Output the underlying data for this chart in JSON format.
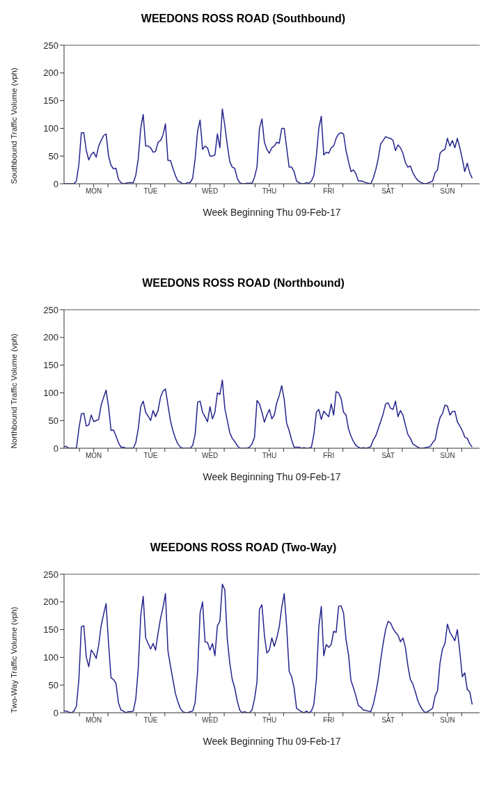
{
  "chart_data": [
    {
      "type": "line",
      "title": "WEEDONS ROSS ROAD  (Southbound)",
      "xlabel": "Week Beginning Thu 09-Feb-17",
      "ylabel": "Southbound Traffic Volume (vph)",
      "marker": "none",
      "categories": [
        null,
        null,
        null,
        null,
        null,
        null,
        null,
        null,
        null,
        null,
        null,
        null,
        "MON",
        null,
        null,
        null,
        null,
        null,
        null,
        null,
        null,
        null,
        null,
        null,
        null,
        null,
        null,
        null,
        null,
        null,
        null,
        null,
        null,
        null,
        null,
        "TUE",
        null,
        null,
        null,
        null,
        null,
        null,
        null,
        null,
        null,
        null,
        null,
        null,
        null,
        null,
        null,
        null,
        null,
        null,
        null,
        null,
        null,
        null,
        null,
        "WED",
        null,
        null,
        null,
        null,
        null,
        null,
        null,
        null,
        null,
        null,
        null,
        null,
        null,
        null,
        null,
        null,
        null,
        null,
        null,
        null,
        null,
        null,
        null,
        "THU",
        null,
        null,
        null,
        null,
        null,
        null,
        null,
        null,
        null,
        null,
        null,
        null,
        null,
        null,
        null,
        null,
        null,
        null,
        null,
        null,
        null,
        null,
        null,
        "FRI",
        null,
        null,
        null,
        null,
        null,
        null,
        null,
        null,
        null,
        null,
        null,
        null,
        null,
        null,
        null,
        null,
        null,
        null,
        null,
        null,
        null,
        null,
        null,
        "SAT",
        null,
        null,
        null,
        null,
        null,
        null,
        null,
        null,
        null,
        null,
        null,
        null,
        null,
        null,
        null,
        null,
        null,
        null,
        null,
        null,
        null,
        null,
        null,
        "SUN",
        null,
        null,
        null,
        null,
        null,
        null,
        null,
        null,
        null,
        null,
        null,
        null
      ],
      "ylim": [
        0,
        250
      ],
      "yticks": [
        0,
        50,
        100,
        150,
        200,
        250
      ],
      "series": [
        {
          "color": "#23238c",
          "values": [
            0,
            0,
            0,
            0,
            0,
            5,
            35,
            92,
            92,
            60,
            43,
            53,
            57,
            48,
            68,
            78,
            87,
            90,
            50,
            33,
            27,
            28,
            8,
            2,
            0,
            1,
            2,
            2,
            2,
            15,
            45,
            100,
            125,
            68,
            68,
            65,
            57,
            58,
            75,
            78,
            88,
            108,
            42,
            42,
            28,
            15,
            5,
            3,
            0,
            0,
            2,
            2,
            10,
            45,
            95,
            115,
            62,
            68,
            65,
            50,
            50,
            52,
            90,
            65,
            135,
            105,
            70,
            40,
            30,
            28,
            10,
            2,
            0,
            0,
            1,
            1,
            1,
            12,
            30,
            100,
            117,
            75,
            62,
            55,
            65,
            68,
            75,
            73,
            100,
            100,
            65,
            30,
            30,
            22,
            5,
            2,
            0,
            0,
            2,
            1,
            5,
            15,
            50,
            100,
            122,
            52,
            57,
            55,
            65,
            68,
            82,
            90,
            92,
            90,
            60,
            40,
            22,
            25,
            18,
            5,
            5,
            4,
            2,
            1,
            0,
            10,
            25,
            45,
            72,
            78,
            85,
            83,
            82,
            78,
            60,
            70,
            65,
            55,
            38,
            30,
            32,
            20,
            12,
            6,
            3,
            1,
            0,
            1,
            3,
            5,
            20,
            25,
            55,
            60,
            62,
            82,
            68,
            78,
            65,
            82,
            65,
            45,
            22,
            37,
            20,
            10,
            null,
            null
          ]
        }
      ]
    },
    {
      "type": "line",
      "title": "WEEDONS ROSS ROAD  (Northbound)",
      "xlabel": "Week Beginning Thu 09-Feb-17",
      "ylabel": "Northbound Traffic Volume (vph)",
      "marker": "none",
      "categories": [
        null,
        null,
        null,
        null,
        null,
        null,
        null,
        null,
        null,
        null,
        null,
        null,
        "MON",
        null,
        null,
        null,
        null,
        null,
        null,
        null,
        null,
        null,
        null,
        null,
        null,
        null,
        null,
        null,
        null,
        null,
        null,
        null,
        null,
        null,
        null,
        "TUE",
        null,
        null,
        null,
        null,
        null,
        null,
        null,
        null,
        null,
        null,
        null,
        null,
        null,
        null,
        null,
        null,
        null,
        null,
        null,
        null,
        null,
        null,
        null,
        "WED",
        null,
        null,
        null,
        null,
        null,
        null,
        null,
        null,
        null,
        null,
        null,
        null,
        null,
        null,
        null,
        null,
        null,
        null,
        null,
        null,
        null,
        null,
        null,
        "THU",
        null,
        null,
        null,
        null,
        null,
        null,
        null,
        null,
        null,
        null,
        null,
        null,
        null,
        null,
        null,
        null,
        null,
        null,
        null,
        null,
        null,
        null,
        null,
        "FRI",
        null,
        null,
        null,
        null,
        null,
        null,
        null,
        null,
        null,
        null,
        null,
        null,
        null,
        null,
        null,
        null,
        null,
        null,
        null,
        null,
        null,
        null,
        null,
        "SAT",
        null,
        null,
        null,
        null,
        null,
        null,
        null,
        null,
        null,
        null,
        null,
        null,
        null,
        null,
        null,
        null,
        null,
        null,
        null,
        null,
        null,
        null,
        null,
        "SUN",
        null,
        null,
        null,
        null,
        null,
        null,
        null,
        null,
        null,
        null,
        null,
        null
      ],
      "ylim": [
        0,
        250
      ],
      "yticks": [
        0,
        50,
        100,
        150,
        200,
        250
      ],
      "series": [
        {
          "color": "#23238c",
          "values": [
            3,
            3,
            0,
            0,
            0,
            0,
            35,
            62,
            63,
            40,
            42,
            60,
            48,
            50,
            52,
            78,
            92,
            105,
            75,
            32,
            33,
            22,
            10,
            2,
            2,
            0,
            0,
            0,
            0,
            10,
            35,
            75,
            85,
            65,
            58,
            50,
            68,
            57,
            68,
            92,
            103,
            107,
            78,
            50,
            32,
            18,
            8,
            2,
            0,
            0,
            0,
            0,
            5,
            25,
            83,
            85,
            65,
            57,
            48,
            75,
            53,
            65,
            100,
            97,
            123,
            72,
            50,
            28,
            18,
            12,
            5,
            0,
            0,
            0,
            0,
            2,
            8,
            20,
            86,
            80,
            65,
            47,
            60,
            70,
            53,
            60,
            82,
            95,
            113,
            88,
            45,
            32,
            15,
            2,
            2,
            2,
            0,
            1,
            0,
            0,
            2,
            25,
            65,
            70,
            52,
            67,
            62,
            57,
            80,
            60,
            102,
            100,
            90,
            65,
            60,
            35,
            22,
            12,
            5,
            2,
            0,
            1,
            0,
            1,
            3,
            15,
            22,
            35,
            48,
            62,
            80,
            82,
            72,
            70,
            85,
            57,
            68,
            60,
            42,
            25,
            18,
            8,
            5,
            2,
            0,
            0,
            1,
            2,
            3,
            10,
            15,
            38,
            55,
            63,
            78,
            76,
            60,
            66,
            67,
            48,
            40,
            32,
            20,
            18,
            8,
            2,
            null,
            null
          ]
        }
      ]
    },
    {
      "type": "line",
      "title": "WEEDONS ROSS ROAD  (Two-Way)",
      "xlabel": "Week Beginning Thu 09-Feb-17",
      "ylabel": "Two-Way Traffic Volume (vph)",
      "marker": "none",
      "categories": [
        null,
        null,
        null,
        null,
        null,
        null,
        null,
        null,
        null,
        null,
        null,
        null,
        "MON",
        null,
        null,
        null,
        null,
        null,
        null,
        null,
        null,
        null,
        null,
        null,
        null,
        null,
        null,
        null,
        null,
        null,
        null,
        null,
        null,
        null,
        null,
        "TUE",
        null,
        null,
        null,
        null,
        null,
        null,
        null,
        null,
        null,
        null,
        null,
        null,
        null,
        null,
        null,
        null,
        null,
        null,
        null,
        null,
        null,
        null,
        null,
        "WED",
        null,
        null,
        null,
        null,
        null,
        null,
        null,
        null,
        null,
        null,
        null,
        null,
        null,
        null,
        null,
        null,
        null,
        null,
        null,
        null,
        null,
        null,
        null,
        "THU",
        null,
        null,
        null,
        null,
        null,
        null,
        null,
        null,
        null,
        null,
        null,
        null,
        null,
        null,
        null,
        null,
        null,
        null,
        null,
        null,
        null,
        null,
        null,
        "FRI",
        null,
        null,
        null,
        null,
        null,
        null,
        null,
        null,
        null,
        null,
        null,
        null,
        null,
        null,
        null,
        null,
        null,
        null,
        null,
        null,
        null,
        null,
        null,
        "SAT",
        null,
        null,
        null,
        null,
        null,
        null,
        null,
        null,
        null,
        null,
        null,
        null,
        null,
        null,
        null,
        null,
        null,
        null,
        null,
        null,
        null,
        null,
        null,
        "SUN",
        null,
        null,
        null,
        null,
        null,
        null,
        null,
        null,
        null,
        null,
        null,
        null
      ],
      "ylim": [
        0,
        250
      ],
      "yticks": [
        0,
        50,
        100,
        150,
        200,
        250
      ],
      "series": [
        {
          "color": "#23238c",
          "values": [
            3,
            3,
            1,
            0,
            3,
            12,
            60,
            155,
            157,
            100,
            83,
            113,
            107,
            98,
            122,
            157,
            178,
            197,
            125,
            63,
            60,
            53,
            18,
            5,
            3,
            0,
            2,
            2,
            3,
            25,
            80,
            175,
            210,
            135,
            125,
            115,
            125,
            113,
            143,
            170,
            190,
            215,
            112,
            85,
            60,
            35,
            20,
            8,
            2,
            0,
            0,
            2,
            3,
            18,
            75,
            180,
            200,
            128,
            127,
            113,
            125,
            103,
            157,
            165,
            232,
            222,
            133,
            90,
            60,
            45,
            22,
            5,
            0,
            2,
            0,
            0,
            5,
            25,
            55,
            187,
            195,
            140,
            108,
            113,
            135,
            120,
            135,
            155,
            190,
            215,
            155,
            75,
            65,
            45,
            8,
            5,
            2,
            0,
            3,
            0,
            3,
            15,
            60,
            155,
            192,
            103,
            123,
            118,
            123,
            147,
            145,
            192,
            193,
            180,
            132,
            105,
            58,
            45,
            30,
            13,
            10,
            5,
            4,
            3,
            2,
            15,
            35,
            60,
            95,
            125,
            150,
            165,
            162,
            152,
            145,
            140,
            128,
            135,
            118,
            85,
            60,
            52,
            38,
            22,
            12,
            5,
            0,
            2,
            5,
            8,
            30,
            40,
            90,
            115,
            125,
            160,
            145,
            138,
            130,
            150,
            110,
            65,
            72,
            42,
            38,
            15,
            null,
            null
          ]
        }
      ]
    }
  ]
}
